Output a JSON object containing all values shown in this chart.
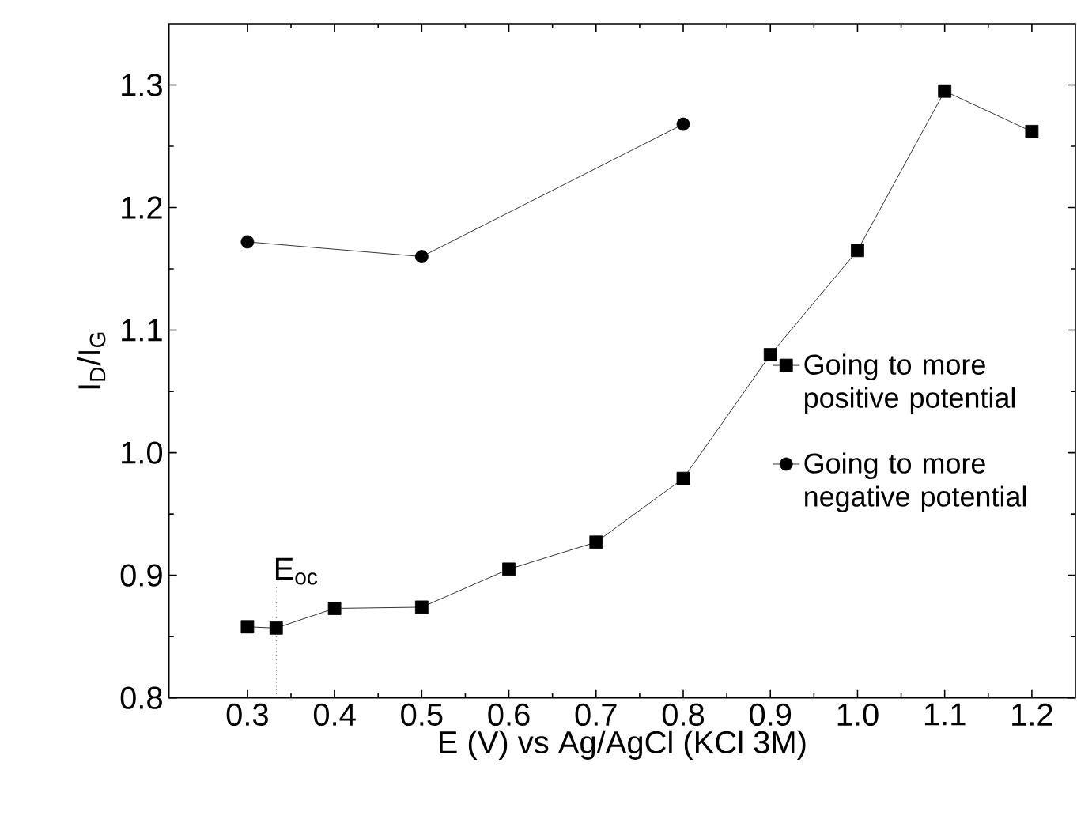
{
  "chart_data": {
    "type": "line",
    "xlabel": "E (V) vs Ag/AgCl (KCl 3M)",
    "ylabel": "I$_{D}$/I$_{G}$",
    "xlim": [
      0.21,
      1.25
    ],
    "ylim": [
      0.8,
      1.35
    ],
    "xticks": [
      {
        "value": 0.3,
        "label": "0.3"
      },
      {
        "value": 0.4,
        "label": "0.4"
      },
      {
        "value": 0.5,
        "label": "0.5"
      },
      {
        "value": 0.6,
        "label": "0.6"
      },
      {
        "value": 0.7,
        "label": "0.7"
      },
      {
        "value": 0.8,
        "label": "0.8"
      },
      {
        "value": 0.9,
        "label": "0.9"
      },
      {
        "value": 1.0,
        "label": "1.0"
      },
      {
        "value": 1.1,
        "label": "1.1"
      },
      {
        "value": 1.2,
        "label": "1.2"
      }
    ],
    "yticks": [
      {
        "value": 0.8,
        "label": "0.8"
      },
      {
        "value": 0.9,
        "label": "0.9"
      },
      {
        "value": 1.0,
        "label": "1.0"
      },
      {
        "value": 1.1,
        "label": "1.1"
      },
      {
        "value": 1.2,
        "label": "1.2"
      },
      {
        "value": 1.3,
        "label": "1.3"
      }
    ],
    "legend": "right",
    "line_style": "solid",
    "ref_lines": [
      {
        "axis": "x",
        "value": 0.333,
        "label": "E$_{oc}$",
        "line_style": "dotted"
      }
    ],
    "series": [
      {
        "name": "Going to more positive potential",
        "color": "#000000",
        "marker": "square",
        "x": [
          0.3,
          0.333,
          0.4,
          0.5,
          0.6,
          0.7,
          0.8,
          0.9,
          1.0,
          1.1,
          1.2
        ],
        "values": [
          0.858,
          0.857,
          0.873,
          0.874,
          0.905,
          0.927,
          0.979,
          1.08,
          1.165,
          1.295,
          1.262
        ]
      },
      {
        "name": "Going to more negative potential",
        "color": "#000000",
        "marker": "circle",
        "x": [
          0.3,
          0.5,
          0.8
        ],
        "values": [
          1.172,
          1.16,
          1.268
        ]
      }
    ]
  }
}
